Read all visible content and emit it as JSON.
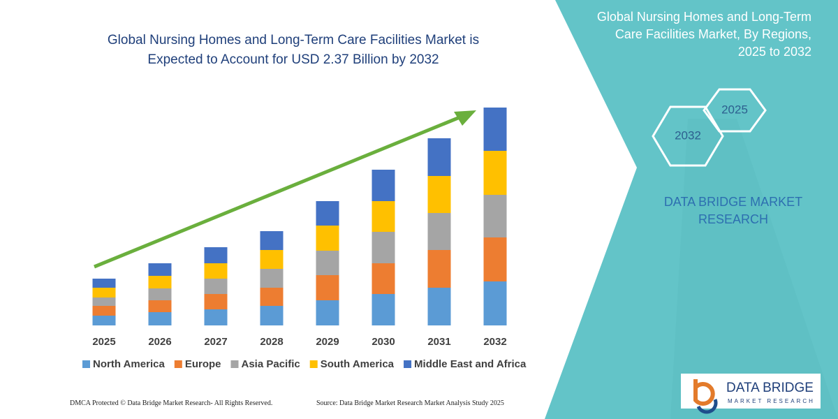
{
  "chart_data": {
    "type": "stacked_bar",
    "title": "Global Nursing Homes and Long-Term Care Facilities Market is Expected to Account for USD 2.37 Billion by 2032",
    "categories": [
      "2025",
      "2026",
      "2027",
      "2028",
      "2029",
      "2030",
      "2031",
      "2032"
    ],
    "series": [
      {
        "name": "North America",
        "color": "#5b9bd5",
        "values": [
          14,
          19,
          23,
          28,
          36,
          45,
          54,
          63
        ]
      },
      {
        "name": "Europe",
        "color": "#ed7d31",
        "values": [
          14,
          17,
          22,
          26,
          36,
          44,
          54,
          63
        ]
      },
      {
        "name": "Asia Pacific",
        "color": "#a5a5a5",
        "values": [
          12,
          17,
          22,
          27,
          35,
          45,
          53,
          61
        ]
      },
      {
        "name": "South America",
        "color": "#ffc000",
        "values": [
          14,
          18,
          22,
          27,
          36,
          44,
          53,
          63
        ]
      },
      {
        "name": "Middle East and Africa",
        "color": "#4472c4",
        "values": [
          13,
          18,
          23,
          27,
          35,
          45,
          54,
          62
        ]
      }
    ],
    "legend": "bottom"
  },
  "side_panel": {
    "title": "Global Nursing Homes and Long-Term Care Facilities Market, By Regions, 2025 to 2032",
    "hexagons": [
      "2025",
      "2032"
    ],
    "brand": "DATA BRIDGE MARKET RESEARCH"
  },
  "logo": {
    "name": "DATA BRIDGE",
    "tagline": "MARKET RESEARCH"
  },
  "footer": {
    "copyright": "DMCA Protected © Data Bridge Market Research- All Rights Reserved.",
    "source": "Source: Data Bridge Market Research  Market Analysis Study 2025"
  }
}
